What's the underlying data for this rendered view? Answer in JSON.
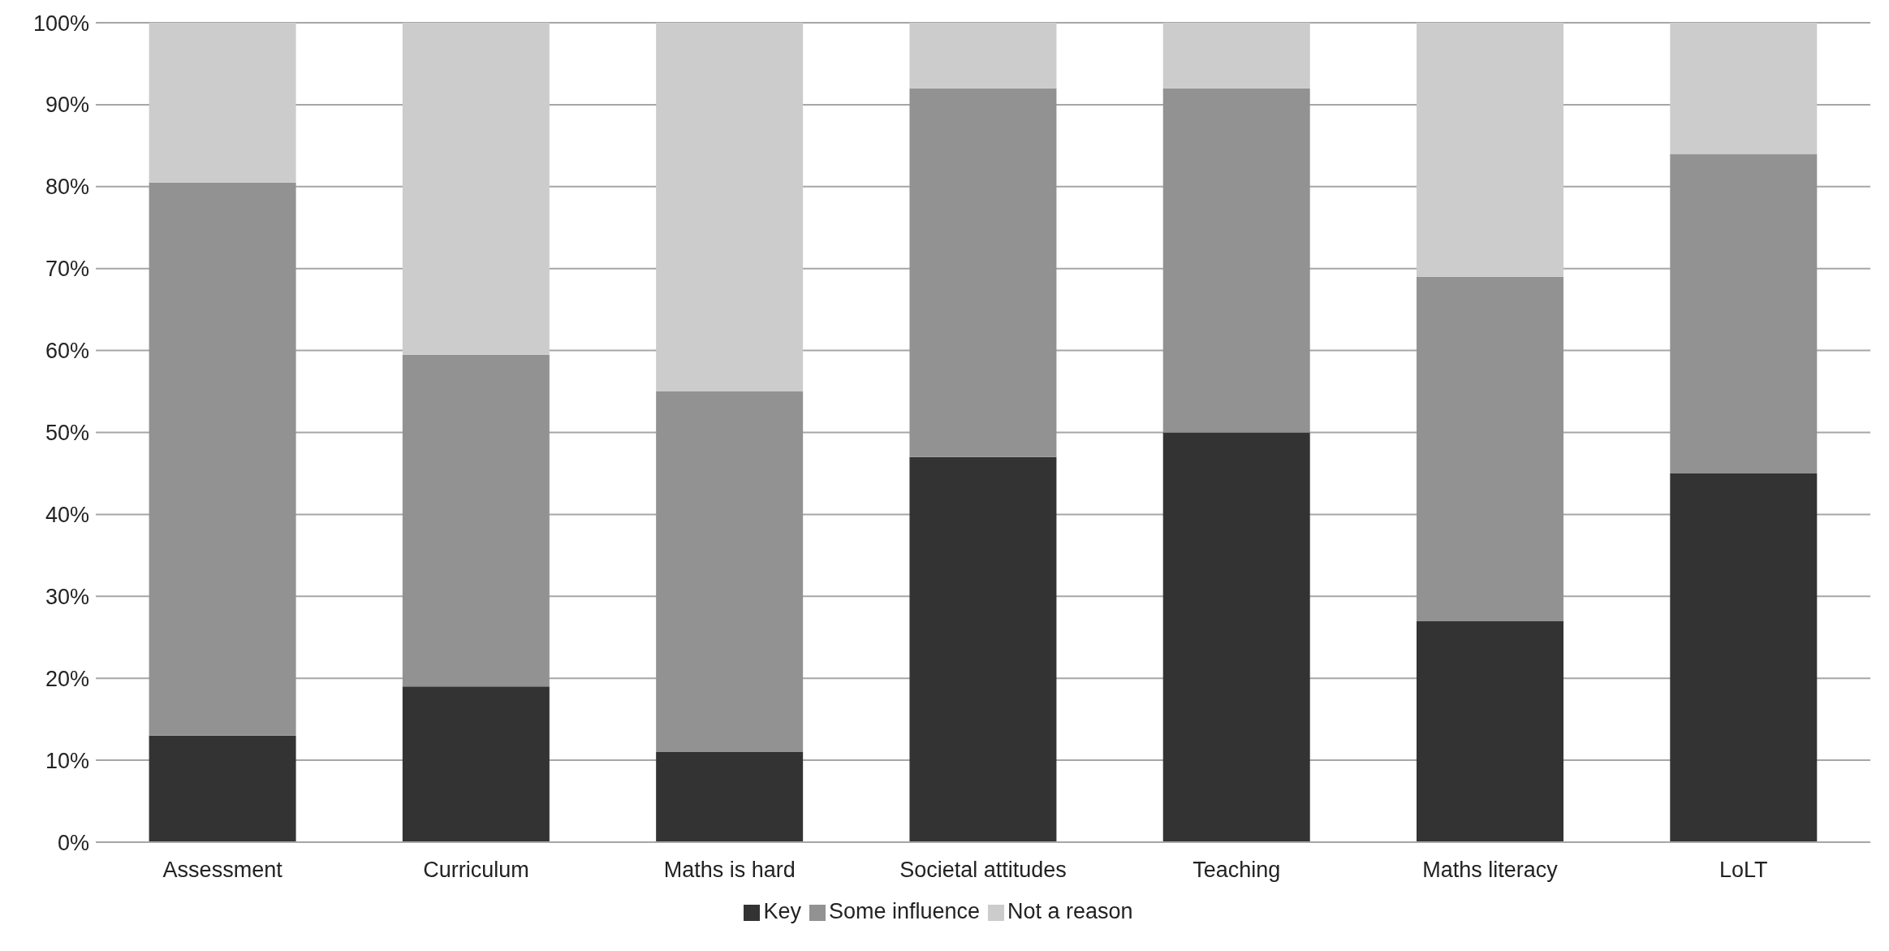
{
  "chart_data": {
    "type": "bar",
    "stacked": true,
    "categories": [
      "Assessment",
      "Curriculum",
      "Maths is hard",
      "Societal attitudes",
      "Teaching",
      "Maths literacy",
      "LoLT"
    ],
    "series": [
      {
        "name": "Key",
        "color": "#333333",
        "values": [
          13,
          19,
          11,
          47,
          50,
          27,
          45
        ]
      },
      {
        "name": "Some influence",
        "color": "#929292",
        "values": [
          67.5,
          40.5,
          44,
          45,
          42,
          42,
          39
        ]
      },
      {
        "name": "Not a reason",
        "color": "#cccccc",
        "values": [
          19.5,
          40.5,
          45,
          8,
          8,
          31,
          16
        ]
      }
    ],
    "ylim": [
      0,
      100
    ],
    "yticks": [
      {
        "value": 0,
        "label": "0%"
      },
      {
        "value": 10,
        "label": "10%"
      },
      {
        "value": 20,
        "label": "20%"
      },
      {
        "value": 30,
        "label": "30%"
      },
      {
        "value": 40,
        "label": "40%"
      },
      {
        "value": 50,
        "label": "50%"
      },
      {
        "value": 60,
        "label": "60%"
      },
      {
        "value": 70,
        "label": "70%"
      },
      {
        "value": 80,
        "label": "80%"
      },
      {
        "value": 90,
        "label": "90%"
      },
      {
        "value": 100,
        "label": "100%"
      }
    ],
    "grid": "y",
    "legend": "bottom"
  }
}
